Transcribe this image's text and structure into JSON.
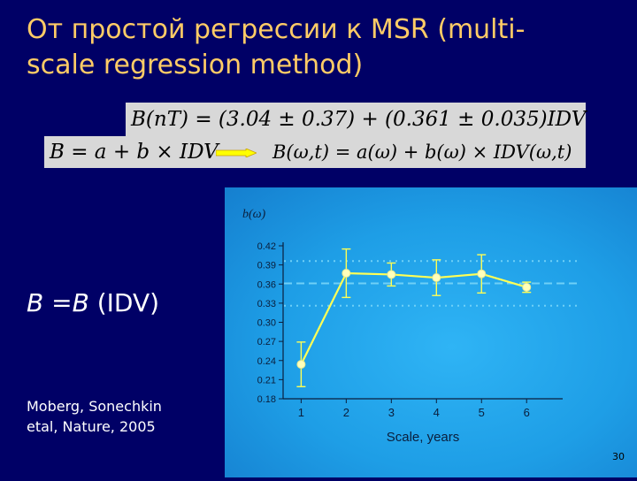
{
  "slide": {
    "title_line1": "От простой регрессии к MSR (multi-",
    "title_line2": "scale regression method)",
    "formula_top": "B(nT) = (3.04 ± 0.37) + (0.361 ± 0.035)IDV",
    "formula_simple": "B = a + b × IDV",
    "formula_msr": "B(ω,t) = a(ω) + b(ω) × IDV(ω,t)",
    "bb_lhs": "B",
    "bb_mid": " =",
    "bb_rhs": "B",
    "bb_arg": " (IDV)",
    "cite_line1": "Moberg, Sonechkin",
    "cite_line2": "etal, Nature, 2005",
    "page_number": "30",
    "colors": {
      "title": "#ffcc66",
      "background": "#000066",
      "arrow": "#ffff00"
    }
  },
  "chart_data": {
    "type": "line",
    "ylabel": "b(ω)",
    "xlabel": "Scale, years",
    "x": [
      1,
      2,
      3,
      4,
      5,
      6
    ],
    "xticks": [
      "1",
      "2",
      "3",
      "4",
      "5",
      "6"
    ],
    "yticks": [
      "0.42",
      "0.39",
      "0.36",
      "0.33",
      "0.30",
      "0.27",
      "0.24",
      "0.21",
      "0.18"
    ],
    "ylim": [
      0.18,
      0.42
    ],
    "series": [
      {
        "values": [
          0.234,
          0.377,
          0.375,
          0.37,
          0.376,
          0.355
        ],
        "error": [
          0.035,
          0.038,
          0.018,
          0.028,
          0.03,
          0.008
        ]
      }
    ],
    "reference_lines": [
      {
        "y": 0.361,
        "style": "dashed"
      },
      {
        "y": 0.396,
        "style": "dotted"
      },
      {
        "y": 0.326,
        "style": "dotted"
      }
    ],
    "grid": false,
    "colors": {
      "line": "#ffff55",
      "marker": "#ffffbb",
      "reference": "#6fd0f7",
      "text": "#0a1e3c"
    }
  }
}
